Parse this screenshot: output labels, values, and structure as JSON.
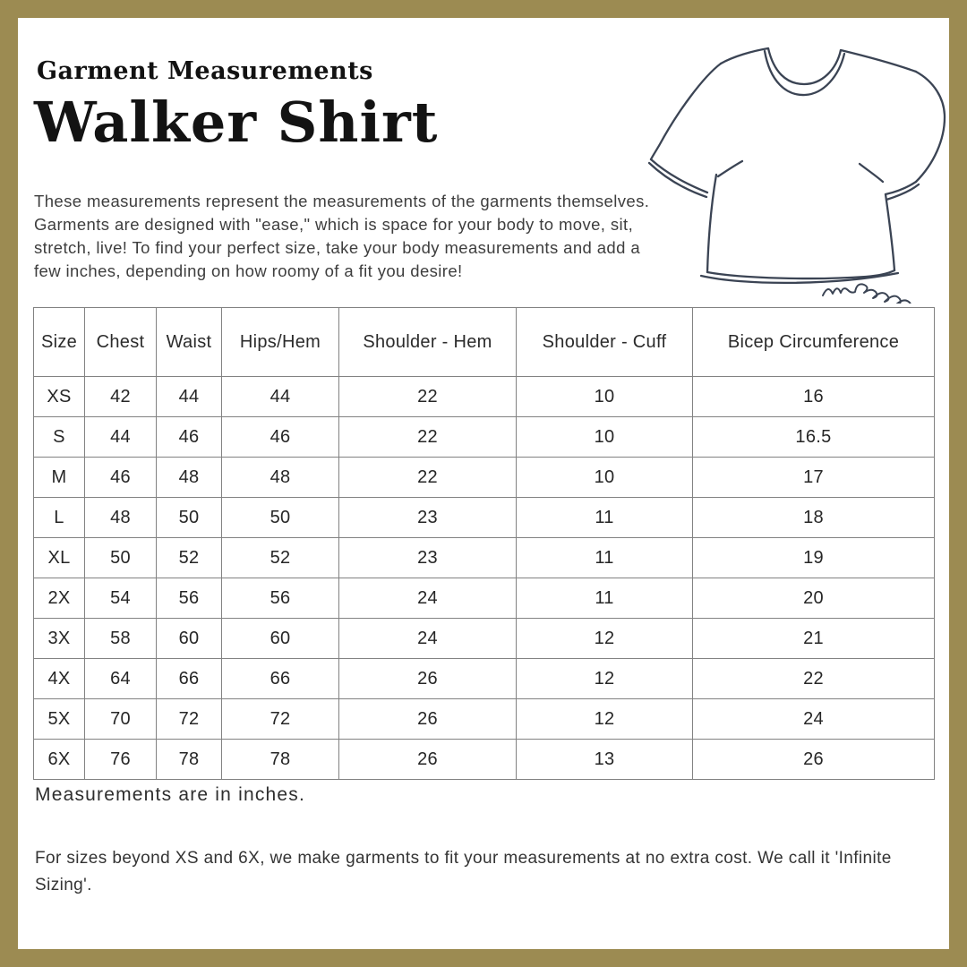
{
  "page": {
    "border_color": "#9c8b52",
    "background_color": "#ffffff"
  },
  "header": {
    "eyebrow": "Garment Measurements",
    "title": "Walker Shirt",
    "description_lines": [
      "These measurements represent the measurements of the garments themselves.",
      "Garments are designed with \"ease,\" which is space for your body to move, sit,",
      "stretch, live! To find your perfect size, take your body measurements and add a",
      "few inches, depending on how roomy of a fit you desire!"
    ]
  },
  "illustration": {
    "type": "hand-drawn t-shirt sketch",
    "signature": "cm2022",
    "stroke_color": "#3b4454"
  },
  "chart_data": {
    "type": "table",
    "title": "Walker Shirt",
    "subtitle": "Garment Measurements",
    "units": "inches",
    "columns": [
      "Size",
      "Chest",
      "Waist",
      "Hips/Hem",
      "Shoulder - Hem",
      "Shoulder - Cuff",
      "Bicep Circumference"
    ],
    "rows": [
      [
        "XS",
        "42",
        "44",
        "44",
        "22",
        "10",
        "16"
      ],
      [
        "S",
        "44",
        "46",
        "46",
        "22",
        "10",
        "16.5"
      ],
      [
        "M",
        "46",
        "48",
        "48",
        "22",
        "10",
        "17"
      ],
      [
        "L",
        "48",
        "50",
        "50",
        "23",
        "11",
        "18"
      ],
      [
        "XL",
        "50",
        "52",
        "52",
        "23",
        "11",
        "19"
      ],
      [
        "2X",
        "54",
        "56",
        "56",
        "24",
        "11",
        "20"
      ],
      [
        "3X",
        "58",
        "60",
        "60",
        "24",
        "12",
        "21"
      ],
      [
        "4X",
        "64",
        "66",
        "66",
        "26",
        "12",
        "22"
      ],
      [
        "5X",
        "70",
        "72",
        "72",
        "26",
        "12",
        "24"
      ],
      [
        "6X",
        "76",
        "78",
        "78",
        "26",
        "13",
        "26"
      ]
    ]
  },
  "footer": {
    "units_note": "Measurements are in inches.",
    "infinite_sizing_note": "For sizes beyond XS and 6X, we make garments to fit your measurements at no extra cost. We call it 'Infinite Sizing'."
  }
}
